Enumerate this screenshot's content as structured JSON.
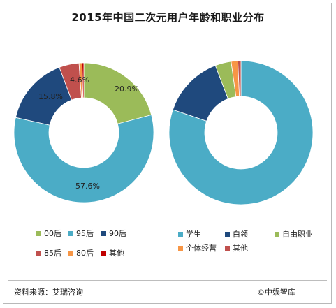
{
  "title": "2015年中国二次元用户年龄和职业分布",
  "source": "资料来源：艾瑞咨询",
  "brand": "©中娱智库",
  "chart_data": [
    {
      "type": "pie",
      "variant": "donut",
      "slices": [
        {
          "name": "00后",
          "value": 20.9,
          "label": "20.9%",
          "color": "#9bbb59"
        },
        {
          "name": "95后",
          "value": 57.6,
          "label": "57.6%",
          "color": "#4bacc6"
        },
        {
          "name": "90后",
          "value": 15.8,
          "label": "15.8%",
          "color": "#1f497d"
        },
        {
          "name": "85后",
          "value": 4.6,
          "label": "4.6%",
          "color": "#c0504d"
        },
        {
          "name": "80后",
          "value": 0.7,
          "label": "",
          "color": "#f79646"
        },
        {
          "name": "其他",
          "value": 0.4,
          "label": "",
          "color": "#c00000"
        }
      ],
      "legend_order": [
        "00后",
        "95后",
        "90后",
        "85后",
        "80后",
        "其他"
      ],
      "legend_position": "bottom"
    },
    {
      "type": "pie",
      "variant": "donut",
      "slices": [
        {
          "name": "学生",
          "value": 80.2,
          "label": "",
          "color": "#4bacc6"
        },
        {
          "name": "白领",
          "value": 14.0,
          "label": "",
          "color": "#1f497d"
        },
        {
          "name": "自由职业",
          "value": 3.6,
          "label": "",
          "color": "#9bbb59"
        },
        {
          "name": "个体经营",
          "value": 1.5,
          "label": "",
          "color": "#f79646"
        },
        {
          "name": "其他",
          "value": 0.7,
          "label": "",
          "color": "#c0504d"
        }
      ],
      "legend_order": [
        "学生",
        "白领",
        "自由职业",
        "个体经营",
        "其他"
      ],
      "legend_position": "bottom"
    }
  ]
}
